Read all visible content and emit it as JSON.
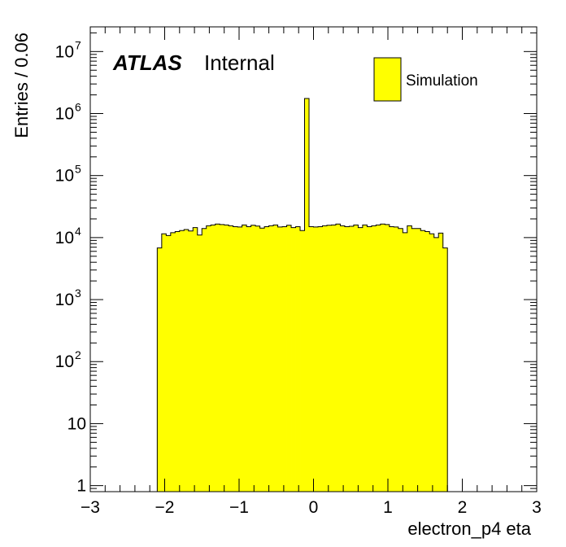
{
  "chart_data": {
    "type": "bar",
    "histogram": true,
    "title": "",
    "xlabel": "electron_p4 eta",
    "ylabel": "Entries / 0.06",
    "xlim": [
      -3,
      3
    ],
    "ylim": [
      0.8,
      25000000
    ],
    "yscale": "log",
    "bin_width": 0.06,
    "x_tick_labels": [
      "−3",
      "−2",
      "−1",
      "0",
      "1",
      "2",
      "3"
    ],
    "x_tick_values": [
      -3,
      -2,
      -1,
      0,
      1,
      2,
      3
    ],
    "y_tick_labels": [
      {
        "value": 1,
        "base": "1",
        "exp": ""
      },
      {
        "value": 10,
        "base": "10",
        "exp": ""
      },
      {
        "value": 100,
        "base": "10",
        "exp": "2"
      },
      {
        "value": 1000,
        "base": "10",
        "exp": "3"
      },
      {
        "value": 10000,
        "base": "10",
        "exp": "4"
      },
      {
        "value": 100000,
        "base": "10",
        "exp": "5"
      },
      {
        "value": 1000000,
        "base": "10",
        "exp": "6"
      },
      {
        "value": 10000000,
        "base": "10",
        "exp": "7"
      }
    ],
    "bins": {
      "edges_start": -2.1,
      "values": [
        6800,
        11500,
        10800,
        12000,
        12500,
        13000,
        13500,
        12800,
        14500,
        11000,
        14000,
        15500,
        16000,
        16500,
        16200,
        16000,
        15500,
        15000,
        14800,
        16000,
        15000,
        15800,
        15300,
        14200,
        15000,
        15500,
        16000,
        14800,
        15000,
        15800,
        14500,
        15000,
        13000,
        1750000,
        15000,
        14800,
        15000,
        15500,
        15800,
        16000,
        16500,
        15500,
        15000,
        15200,
        16000,
        14500,
        16000,
        15000,
        15500,
        16000,
        16500,
        16200,
        15000,
        14800,
        14000,
        12000,
        15500,
        14000,
        14000,
        13000,
        12500,
        11500,
        10000,
        11800,
        6800
      ]
    },
    "series": [
      {
        "name": "Simulation",
        "color": "#ffff00",
        "edge_color": "#000000"
      }
    ],
    "legend_placement": "top-right",
    "grid": false
  },
  "labels": {
    "atlas": "ATLAS",
    "internal": "Internal",
    "legend_entry": "Simulation"
  }
}
